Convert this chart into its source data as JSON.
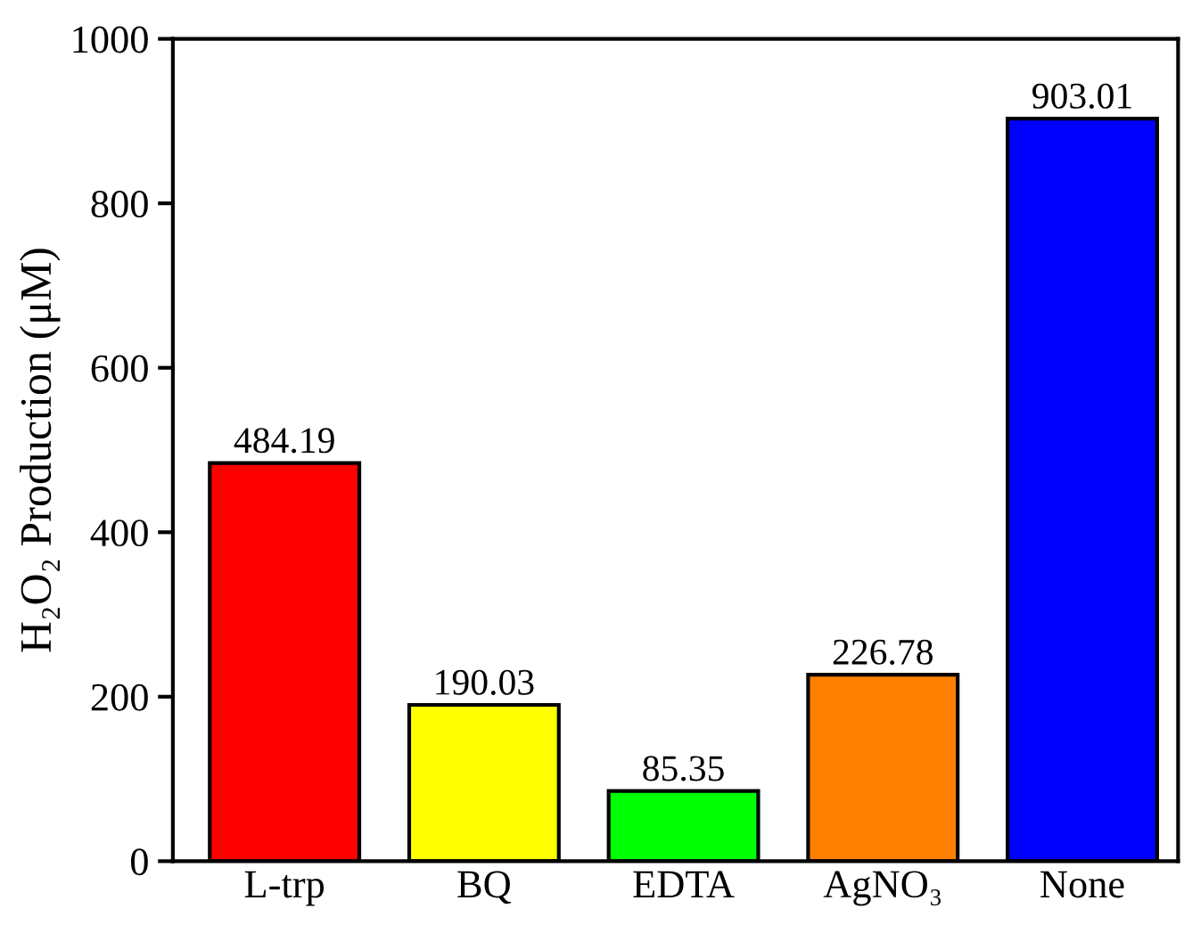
{
  "chart_data": {
    "type": "bar",
    "ylabel": "H₂O₂ Production (μM)",
    "categories": [
      "L-trp",
      "BQ",
      "EDTA",
      "AgNO₃",
      "None"
    ],
    "values": [
      484.19,
      190.03,
      85.35,
      226.78,
      903.01
    ],
    "colors": [
      "#ff0000",
      "#ffff00",
      "#00ff00",
      "#ff8000",
      "#0000ff"
    ],
    "ylim": [
      0,
      1000
    ],
    "yticks": [
      0,
      200,
      400,
      600,
      800,
      1000
    ],
    "data_labels": true,
    "grid": false,
    "legend": false
  }
}
